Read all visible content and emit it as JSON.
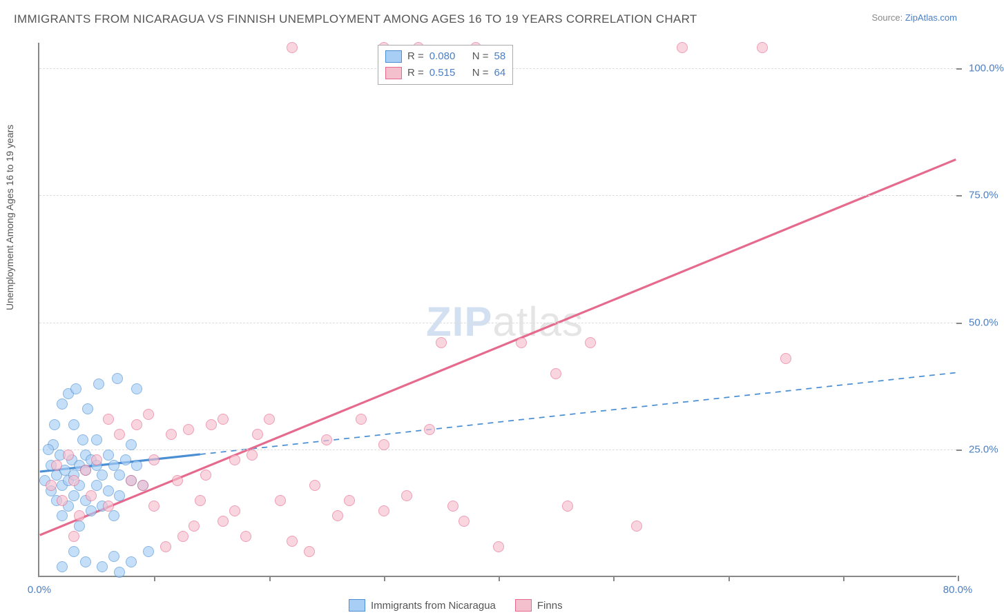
{
  "title": "IMMIGRANTS FROM NICARAGUA VS FINNISH UNEMPLOYMENT AMONG AGES 16 TO 19 YEARS CORRELATION CHART",
  "source_prefix": "Source: ",
  "source_name": "ZipAtlas.com",
  "y_axis_title": "Unemployment Among Ages 16 to 19 years",
  "watermark_a": "ZIP",
  "watermark_b": "atlas",
  "chart": {
    "type": "scatter",
    "xlim": [
      0,
      80
    ],
    "ylim": [
      0,
      105
    ],
    "x_tick_step": 10,
    "y_tick_step": 25,
    "x_tick_labels": {
      "0": "0.0%",
      "80": "80.0%"
    },
    "y_tick_labels": {
      "25": "25.0%",
      "50": "50.0%",
      "75": "75.0%",
      "100": "100.0%"
    },
    "grid_color": "#dddddd",
    "axis_color": "#888888",
    "background_color": "#ffffff"
  },
  "series": [
    {
      "label": "Immigrants from Nicaragua",
      "fill": "#a8cef5",
      "stroke": "#4a8fd4",
      "R": "0.080",
      "N": "58",
      "trend": {
        "x1": 0,
        "y1": 20.5,
        "x2": 80,
        "y2": 40,
        "solid_until_x": 14,
        "width": 3.2
      },
      "points": [
        [
          0.5,
          19
        ],
        [
          1,
          22
        ],
        [
          1,
          17
        ],
        [
          1.2,
          26
        ],
        [
          1.5,
          20
        ],
        [
          1.5,
          15
        ],
        [
          1.8,
          24
        ],
        [
          2,
          34
        ],
        [
          2,
          18
        ],
        [
          2,
          12
        ],
        [
          2.2,
          21
        ],
        [
          2.5,
          36
        ],
        [
          2.5,
          19
        ],
        [
          2.5,
          14
        ],
        [
          2.8,
          23
        ],
        [
          3,
          30
        ],
        [
          3,
          20
        ],
        [
          3,
          16
        ],
        [
          3.2,
          37
        ],
        [
          3.5,
          22
        ],
        [
          3.5,
          18
        ],
        [
          3.5,
          10
        ],
        [
          4,
          24
        ],
        [
          4,
          15
        ],
        [
          4,
          21
        ],
        [
          4.5,
          23
        ],
        [
          4.5,
          13
        ],
        [
          5,
          18
        ],
        [
          5,
          22
        ],
        [
          5.2,
          38
        ],
        [
          5.5,
          20
        ],
        [
          5.5,
          14
        ],
        [
          6,
          24
        ],
        [
          6,
          17
        ],
        [
          6.5,
          22
        ],
        [
          6.5,
          12
        ],
        [
          6.8,
          39
        ],
        [
          7,
          20
        ],
        [
          7,
          16
        ],
        [
          7.5,
          23
        ],
        [
          8,
          19
        ],
        [
          8,
          26
        ],
        [
          8.5,
          37
        ],
        [
          8.5,
          22
        ],
        [
          9,
          18
        ],
        [
          2,
          2
        ],
        [
          3,
          5
        ],
        [
          4,
          3
        ],
        [
          5.5,
          2
        ],
        [
          6.5,
          4
        ],
        [
          7,
          1
        ],
        [
          8,
          3
        ],
        [
          9.5,
          5
        ],
        [
          5,
          27
        ],
        [
          4.2,
          33
        ],
        [
          1.3,
          30
        ],
        [
          0.8,
          25
        ],
        [
          3.8,
          27
        ]
      ]
    },
    {
      "label": "Finns",
      "fill": "#f5c0ce",
      "stroke": "#e66a8e",
      "R": "0.515",
      "N": "64",
      "trend": {
        "x1": 0,
        "y1": 8,
        "x2": 80,
        "y2": 82,
        "solid_until_x": 80,
        "width": 3.2
      },
      "points": [
        [
          1,
          18
        ],
        [
          1.5,
          22
        ],
        [
          2,
          15
        ],
        [
          2.5,
          24
        ],
        [
          3,
          19
        ],
        [
          3.5,
          12
        ],
        [
          4,
          21
        ],
        [
          5,
          23
        ],
        [
          6,
          14
        ],
        [
          7,
          28
        ],
        [
          8,
          19
        ],
        [
          8.5,
          30
        ],
        [
          10,
          14
        ],
        [
          10,
          23
        ],
        [
          11,
          6
        ],
        [
          12,
          19
        ],
        [
          12.5,
          8
        ],
        [
          13,
          29
        ],
        [
          14,
          15
        ],
        [
          15,
          30
        ],
        [
          16,
          11
        ],
        [
          16,
          31
        ],
        [
          17,
          23
        ],
        [
          18,
          8
        ],
        [
          19,
          28
        ],
        [
          20,
          31
        ],
        [
          21,
          15
        ],
        [
          22,
          7
        ],
        [
          23.5,
          5
        ],
        [
          25,
          27
        ],
        [
          26,
          12
        ],
        [
          27,
          15
        ],
        [
          28,
          31
        ],
        [
          30,
          13
        ],
        [
          30,
          26
        ],
        [
          32,
          16
        ],
        [
          34,
          29
        ],
        [
          35,
          46
        ],
        [
          36,
          14
        ],
        [
          37,
          11
        ],
        [
          40,
          6
        ],
        [
          42,
          46
        ],
        [
          45,
          40
        ],
        [
          46,
          14
        ],
        [
          22,
          104
        ],
        [
          30,
          104
        ],
        [
          33,
          104
        ],
        [
          56,
          104
        ],
        [
          63,
          104
        ],
        [
          52,
          10
        ],
        [
          65,
          43
        ],
        [
          38,
          104
        ],
        [
          9,
          18
        ],
        [
          11.5,
          28
        ],
        [
          14.5,
          20
        ],
        [
          18.5,
          24
        ],
        [
          3,
          8
        ],
        [
          6,
          31
        ],
        [
          4.5,
          16
        ],
        [
          9.5,
          32
        ],
        [
          13.5,
          10
        ],
        [
          17,
          13
        ],
        [
          24,
          18
        ],
        [
          48,
          46
        ]
      ]
    }
  ],
  "legend_top_label_R": "R =",
  "legend_top_label_N": "N ="
}
